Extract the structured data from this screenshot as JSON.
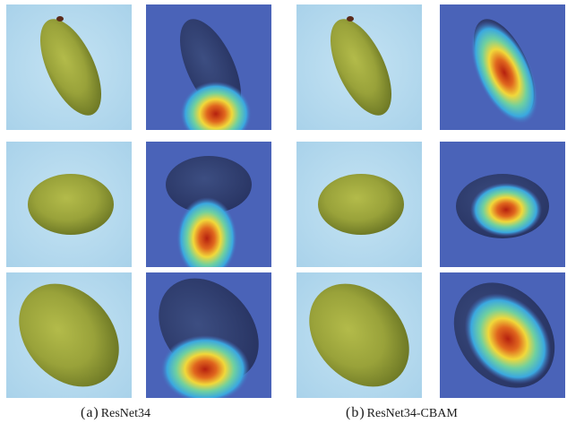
{
  "figure": {
    "captions": [
      {
        "tag": "(a)",
        "name": "ResNet34"
      },
      {
        "tag": "(b)",
        "name": "ResNet34-CBAM"
      }
    ],
    "rows": [
      {
        "shape": "elongated-grape",
        "resnet34_hotspot": "bottom-end",
        "cbam_hotspot": "along-body"
      },
      {
        "shape": "round-grape",
        "resnet34_hotspot": "below-grape",
        "cbam_hotspot": "grape-center"
      },
      {
        "shape": "large-grape",
        "resnet34_hotspot": "lower-edge",
        "cbam_hotspot": "grape-center"
      }
    ]
  },
  "colors": {
    "background": "#ffffff",
    "photo_bg": "#b9dcef",
    "grape": "#9aa33a",
    "heatmap_base": "#4a63b8",
    "heat_hot": "#b82a14"
  }
}
